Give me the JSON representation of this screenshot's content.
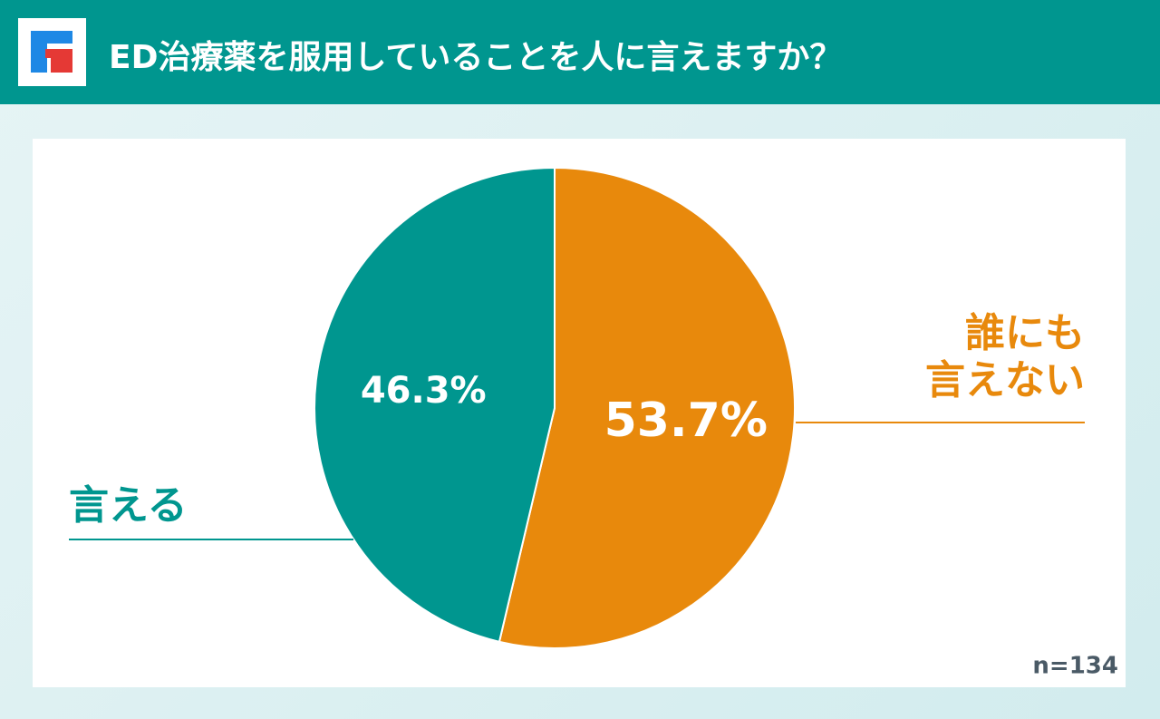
{
  "chart_data": {
    "type": "pie",
    "title": "ED治療薬を服用していることを人に言えますか？",
    "categories": [
      "誰にも\n言えない",
      "言える"
    ],
    "values": [
      53.7,
      46.3
    ],
    "value_labels": [
      "53.7%",
      "46.3%"
    ],
    "colors": [
      "#e8890c",
      "#00968f"
    ],
    "note": "n=134"
  }
}
